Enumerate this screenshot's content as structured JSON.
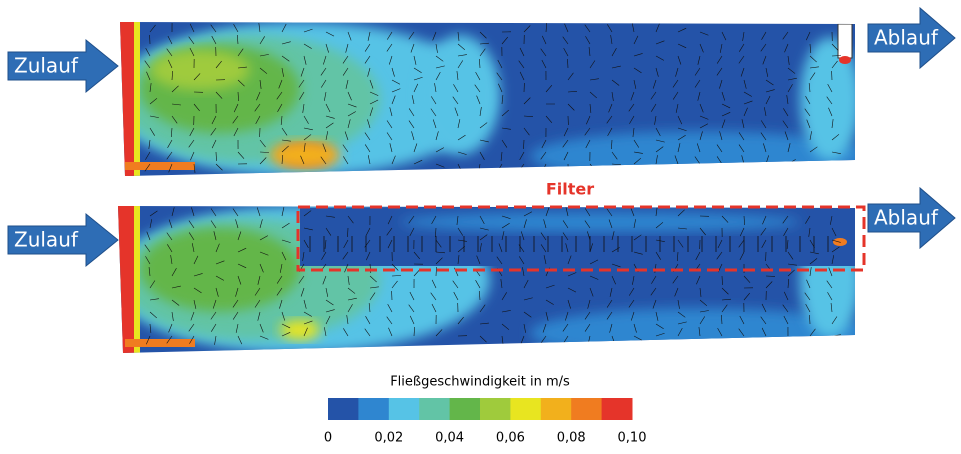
{
  "inlet_top": "Zulauf",
  "outlet_top": "Ablauf",
  "inlet_bottom": "Zulauf",
  "outlet_bottom": "Ablauf",
  "filter_label": "Filter",
  "colorbar": {
    "title": "Fließgeschwindigkeit in m/s",
    "colors": [
      "#2453a8",
      "#2f86d0",
      "#56c3e6",
      "#62c4a6",
      "#63b64a",
      "#9fcb3c",
      "#e8e520",
      "#f2b01c",
      "#f07c20",
      "#e5342a"
    ],
    "tick_labels": [
      "0",
      "0,02",
      "0,04",
      "0,06",
      "0,08",
      "0,10"
    ]
  }
}
